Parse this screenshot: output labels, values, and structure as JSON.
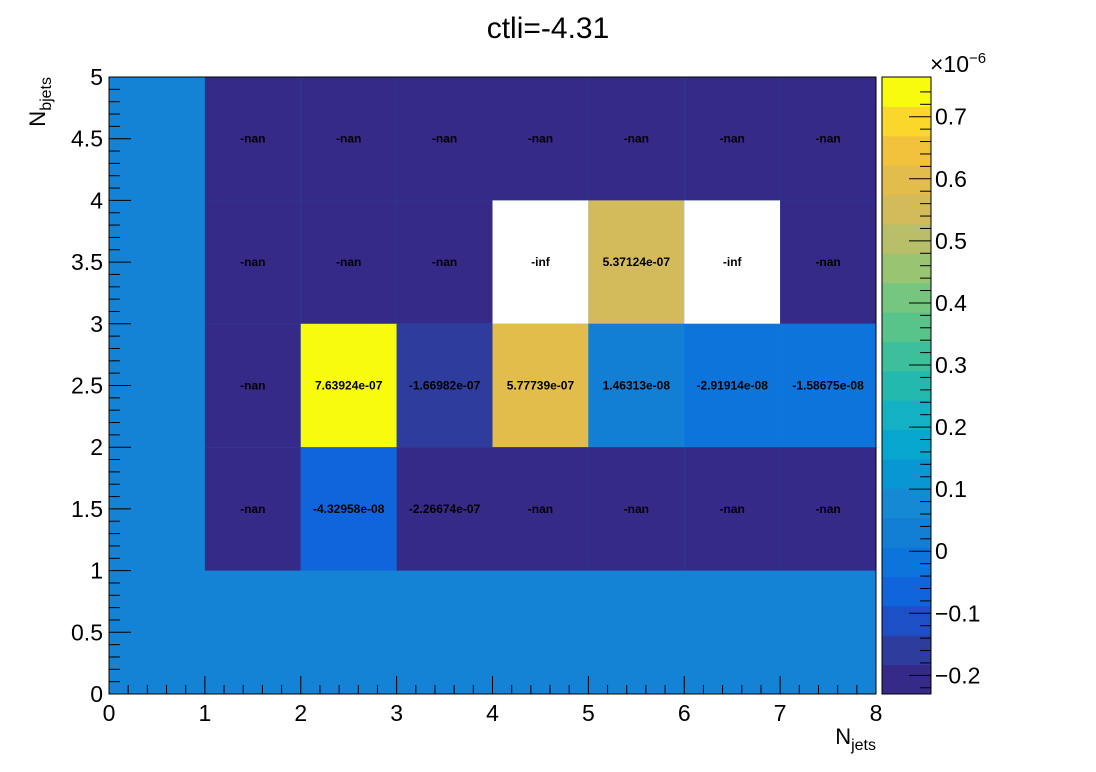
{
  "chart_data": {
    "type": "heatmap",
    "title": "ctli=-4.31",
    "xlabel_main": "N",
    "xlabel_sub": "jets",
    "ylabel_main": "N",
    "ylabel_sub": "bjets",
    "xlim": [
      0,
      8
    ],
    "ylim": [
      0,
      5
    ],
    "x_edges": [
      0,
      1,
      2,
      3,
      4,
      5,
      6,
      7,
      8
    ],
    "y_edges": [
      0,
      1,
      2,
      3,
      4,
      5
    ],
    "x_ticks": [
      "0",
      "1",
      "2",
      "3",
      "4",
      "5",
      "6",
      "7",
      "8"
    ],
    "y_ticks": [
      "0",
      "0.5",
      "1",
      "1.5",
      "2",
      "2.5",
      "3",
      "3.5",
      "4",
      "4.5",
      "5"
    ],
    "zlim": [
      -2.3e-07,
      7.64e-07
    ],
    "z_ticks": [
      "−0.2",
      "−0.1",
      "0",
      "0.1",
      "0.2",
      "0.3",
      "0.4",
      "0.5",
      "0.6",
      "0.7"
    ],
    "z_tick_values": [
      -0.2,
      -0.1,
      0,
      0.1,
      0.2,
      0.3,
      0.4,
      0.5,
      0.6,
      0.7
    ],
    "z_exponent_label": "×10",
    "z_exponent_power": "−6",
    "background_color": "#1483d5",
    "nan_color": "#352a87",
    "inf_color": "#ffffff",
    "palette": [
      "#352a87",
      "#2e3d9d",
      "#1d4fc6",
      "#1065dc",
      "#0d74dc",
      "#127fd5",
      "#1589d3",
      "#0997d3",
      "#07a6cf",
      "#13b1c3",
      "#24b9af",
      "#3ebf9c",
      "#59c48a",
      "#77c67f",
      "#99c572",
      "#b9bf68",
      "#d3ba5a",
      "#e3bd4b",
      "#f3c23c",
      "#fbd72b",
      "#f9fb0e"
    ],
    "cells": [
      {
        "x": 1,
        "y": 4,
        "value": null,
        "label": "-nan"
      },
      {
        "x": 2,
        "y": 4,
        "value": null,
        "label": "-nan"
      },
      {
        "x": 3,
        "y": 4,
        "value": null,
        "label": "-nan"
      },
      {
        "x": 4,
        "y": 4,
        "value": null,
        "label": "-nan"
      },
      {
        "x": 5,
        "y": 4,
        "value": null,
        "label": "-nan"
      },
      {
        "x": 6,
        "y": 4,
        "value": null,
        "label": "-nan"
      },
      {
        "x": 7,
        "y": 4,
        "value": null,
        "label": "-nan"
      },
      {
        "x": 1,
        "y": 3,
        "value": null,
        "label": "-nan"
      },
      {
        "x": 2,
        "y": 3,
        "value": null,
        "label": "-nan"
      },
      {
        "x": 3,
        "y": 3,
        "value": null,
        "label": "-nan"
      },
      {
        "x": 4,
        "y": 3,
        "value": "-inf",
        "label": "-inf"
      },
      {
        "x": 5,
        "y": 3,
        "value": 5.37124e-07,
        "label": "5.37124e-07"
      },
      {
        "x": 6,
        "y": 3,
        "value": "-inf",
        "label": "-inf"
      },
      {
        "x": 7,
        "y": 3,
        "value": null,
        "label": "-nan"
      },
      {
        "x": 1,
        "y": 2,
        "value": null,
        "label": "-nan"
      },
      {
        "x": 2,
        "y": 2,
        "value": 7.63924e-07,
        "label": "7.63924e-07"
      },
      {
        "x": 3,
        "y": 2,
        "value": -1.66982e-07,
        "label": "-1.66982e-07"
      },
      {
        "x": 4,
        "y": 2,
        "value": 5.77739e-07,
        "label": "5.77739e-07"
      },
      {
        "x": 5,
        "y": 2,
        "value": 1.46313e-08,
        "label": "1.46313e-08"
      },
      {
        "x": 6,
        "y": 2,
        "value": -2.91914e-08,
        "label": "-2.91914e-08"
      },
      {
        "x": 7,
        "y": 2,
        "value": -1.58675e-08,
        "label": "-1.58675e-08"
      },
      {
        "x": 1,
        "y": 1,
        "value": null,
        "label": "-nan"
      },
      {
        "x": 2,
        "y": 1,
        "value": -4.32958e-08,
        "label": "-4.32958e-08"
      },
      {
        "x": 3,
        "y": 1,
        "value": -2.26674e-07,
        "label": "-2.26674e-07"
      },
      {
        "x": 4,
        "y": 1,
        "value": null,
        "label": "-nan"
      },
      {
        "x": 5,
        "y": 1,
        "value": null,
        "label": "-nan"
      },
      {
        "x": 6,
        "y": 1,
        "value": null,
        "label": "-nan"
      },
      {
        "x": 7,
        "y": 1,
        "value": null,
        "label": "-nan"
      }
    ]
  }
}
